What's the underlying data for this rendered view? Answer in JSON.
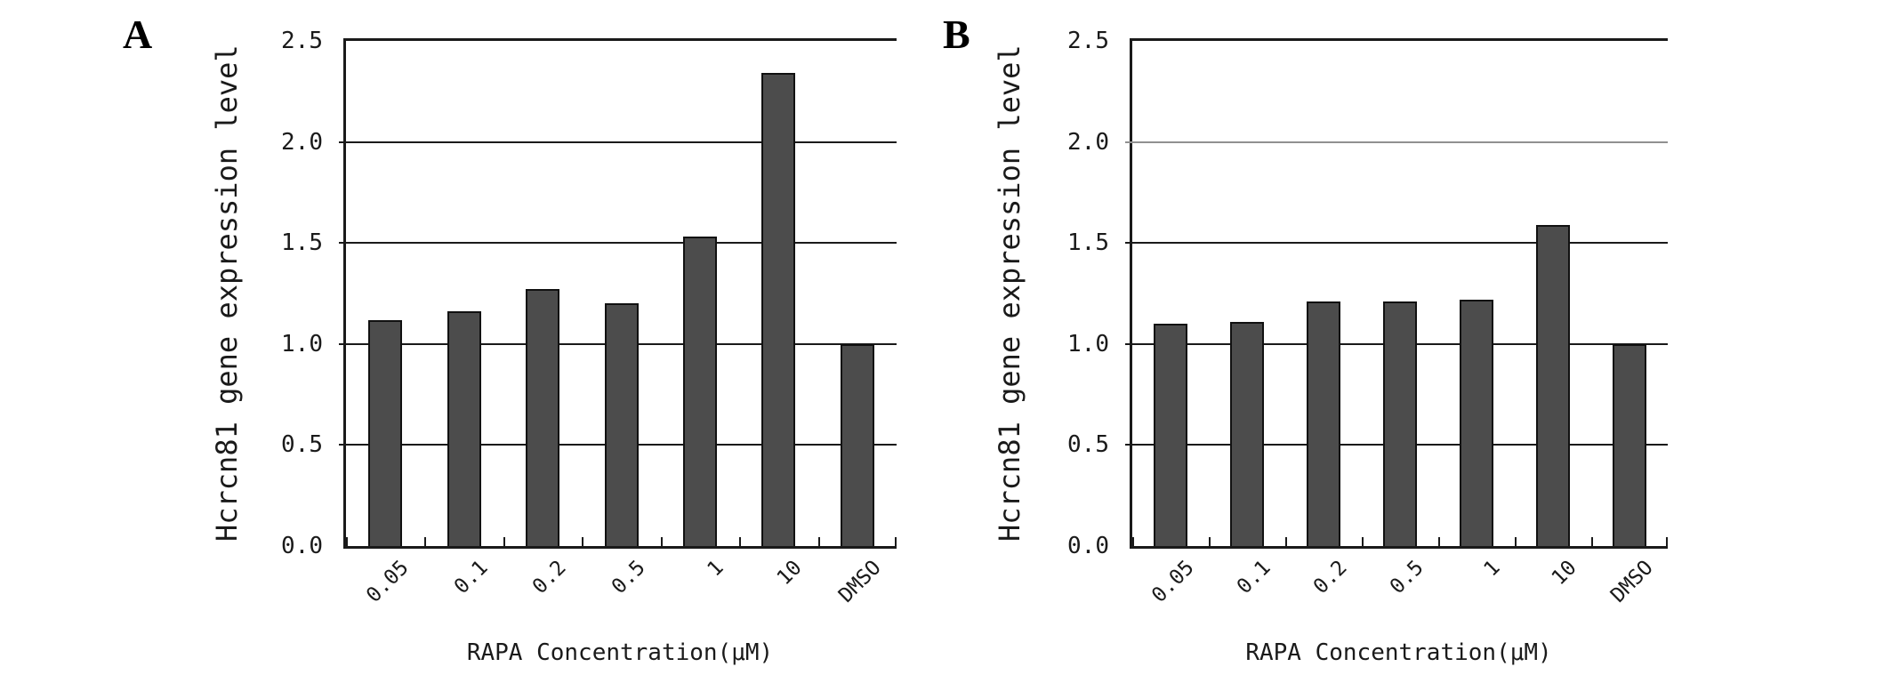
{
  "colors": {
    "background": "#ffffff",
    "text": "#1a1a1a",
    "axis": "#1a1a1a",
    "grid": "#1a1a1a",
    "light_grid": "#909090",
    "bar_fill": "#4c4c4c",
    "bar_border": "#111111"
  },
  "chart_data": [
    {
      "type": "bar",
      "panel_label": "A",
      "title": "",
      "xlabel": "RAPA Concentration(μM)",
      "ylabel": "Hcrcn81 gene expression level",
      "categories": [
        "0.05",
        "0.1",
        "0.2",
        "0.5",
        "1",
        "10",
        "DMSO"
      ],
      "values": [
        1.12,
        1.16,
        1.27,
        1.2,
        1.53,
        2.34,
        1.0
      ],
      "ylim": [
        0,
        2.5
      ],
      "y_ticks": [
        2.5,
        2.0,
        1.5,
        1.0,
        0.5,
        0.0
      ],
      "y_tick_labels": [
        "2.5",
        "2.0",
        "1.5",
        "1.0",
        "0.5",
        "0.0"
      ],
      "gridlines": [
        2.0,
        1.5,
        1.0,
        0.5
      ],
      "light_gridline": null,
      "grid": "on",
      "legend": "none"
    },
    {
      "type": "bar",
      "panel_label": "B",
      "title": "",
      "xlabel": "RAPA Concentration(μM)",
      "ylabel": "Hcrcn81 gene expression level",
      "categories": [
        "0.05",
        "0.1",
        "0.2",
        "0.5",
        "1",
        "10",
        "DMSO"
      ],
      "values": [
        1.1,
        1.11,
        1.21,
        1.21,
        1.22,
        1.59,
        1.0
      ],
      "ylim": [
        0,
        2.5
      ],
      "y_ticks": [
        2.5,
        2.0,
        1.5,
        1.0,
        0.5,
        0.0
      ],
      "y_tick_labels": [
        "2.5",
        "2.0",
        "1.5",
        "1.0",
        "0.5",
        "0.0"
      ],
      "gridlines": [
        2.0,
        1.5,
        1.0,
        0.5
      ],
      "light_gridline": 2.0,
      "grid": "on",
      "legend": "none"
    }
  ]
}
